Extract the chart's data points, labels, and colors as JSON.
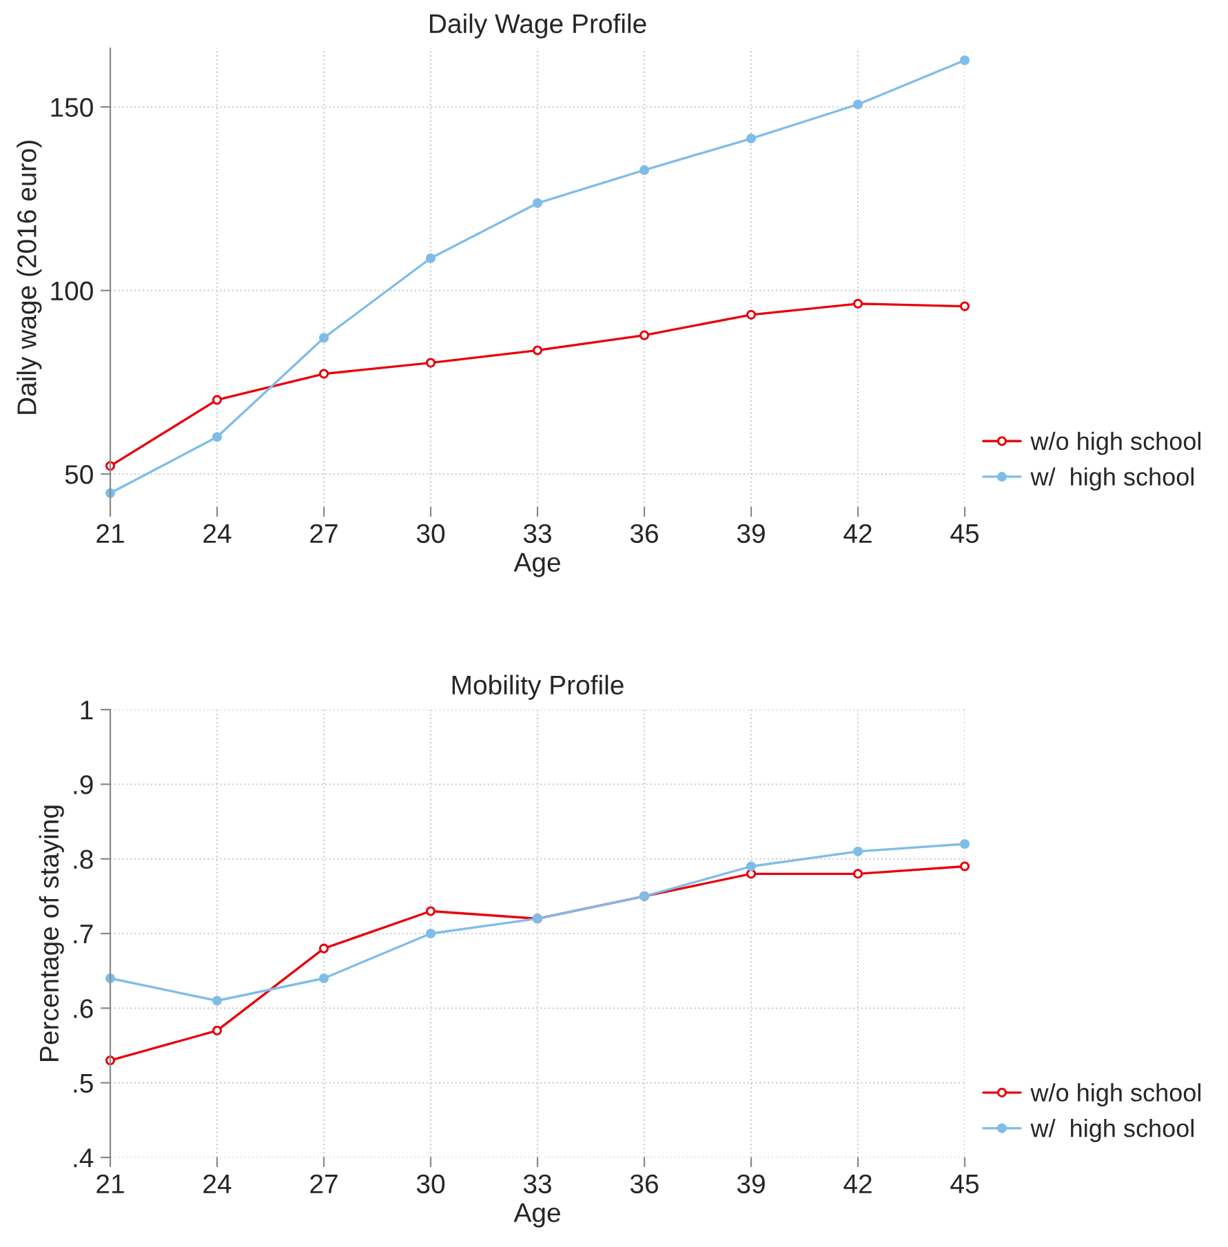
{
  "chart_data": [
    {
      "type": "line",
      "title": "Daily Wage Profile",
      "xlabel": "Age",
      "ylabel": "Daily wage (2016 euro)",
      "x": [
        21,
        24,
        27,
        30,
        33,
        36,
        39,
        42,
        45
      ],
      "series": [
        {
          "name": "w/o high school",
          "color": "#e8000b",
          "marker": "circle",
          "values": [
            52.2,
            70.2,
            77.3,
            80.3,
            83.7,
            87.8,
            93.4,
            96.4,
            95.7
          ]
        },
        {
          "name": "w/  high school",
          "color": "#7fbde8",
          "marker": "circle",
          "values": [
            44.8,
            60.1,
            87.1,
            108.8,
            123.8,
            132.8,
            141.4,
            150.7,
            162.7
          ]
        }
      ],
      "xlim": [
        21,
        45
      ],
      "xticks": [
        21,
        24,
        27,
        30,
        33,
        36,
        39,
        42,
        45
      ],
      "ylim": [
        41,
        166
      ],
      "yticks": [
        50,
        100,
        150
      ],
      "grid": true,
      "legend": "right"
    },
    {
      "type": "line",
      "title": "Mobility Profile",
      "xlabel": "Age",
      "ylabel": "Percentage of staying",
      "x": [
        21,
        24,
        27,
        30,
        33,
        36,
        39,
        42,
        45
      ],
      "series": [
        {
          "name": "w/o high school",
          "color": "#e8000b",
          "marker": "circle",
          "values": [
            0.53,
            0.57,
            0.68,
            0.73,
            0.72,
            0.75,
            0.78,
            0.78,
            0.79
          ]
        },
        {
          "name": "w/  high school",
          "color": "#7fbde8",
          "marker": "circle",
          "values": [
            0.64,
            0.61,
            0.64,
            0.7,
            0.72,
            0.75,
            0.79,
            0.81,
            0.82
          ]
        }
      ],
      "xlim": [
        21,
        45
      ],
      "xticks": [
        21,
        24,
        27,
        30,
        33,
        36,
        39,
        42,
        45
      ],
      "ylim": [
        0.4,
        1
      ],
      "yticks": [
        {
          "value": 0.4,
          "label": ".4"
        },
        {
          "value": 0.5,
          "label": ".5"
        },
        {
          "value": 0.6,
          "label": ".6"
        },
        {
          "value": 0.7,
          "label": ".7"
        },
        {
          "value": 0.8,
          "label": ".8"
        },
        {
          "value": 0.9,
          "label": ".9"
        },
        {
          "value": 1,
          "label": "1"
        }
      ],
      "grid": true,
      "legend": "right"
    }
  ]
}
